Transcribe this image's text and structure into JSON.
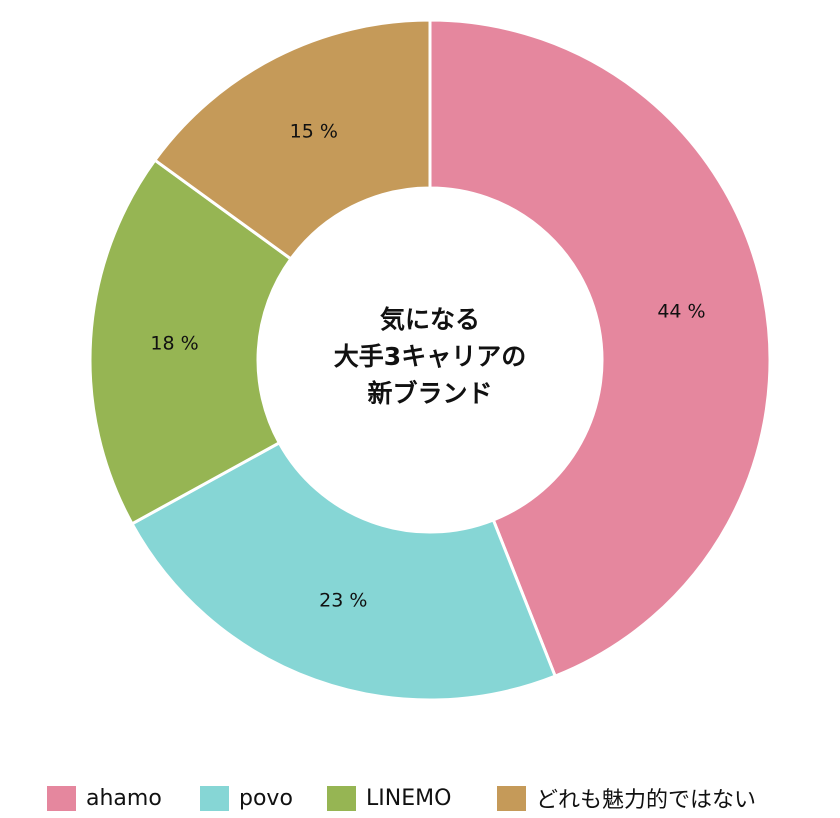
{
  "chart_data": {
    "type": "pie",
    "variant": "donut",
    "center_title": [
      "気になる",
      "大手3キャリアの",
      "新ブランド"
    ],
    "categories": [
      "ahamo",
      "povo",
      "LINEMO",
      "どれも魅力的ではない"
    ],
    "values": [
      44,
      23,
      18,
      15
    ],
    "value_labels": [
      "44 %",
      "23 %",
      "18 %",
      "15 %"
    ],
    "colors": [
      "#E5879E",
      "#86D6D5",
      "#96B553",
      "#C59A59"
    ],
    "legend_position": "bottom"
  }
}
